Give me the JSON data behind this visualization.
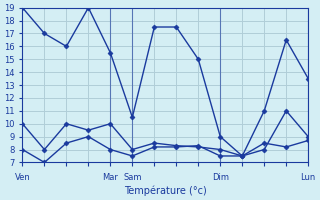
{
  "title": "",
  "xlabel": "Température (°c)",
  "ylabel": "",
  "background_color": "#d4eef4",
  "grid_color": "#b0cdd8",
  "line_color": "#1a3a9e",
  "ylim": [
    7,
    19
  ],
  "xlim": [
    0,
    13
  ],
  "yticks": [
    7,
    8,
    9,
    10,
    11,
    12,
    13,
    14,
    15,
    16,
    17,
    18,
    19
  ],
  "day_positions": [
    0,
    4,
    5,
    9,
    13
  ],
  "day_labels": [
    "Ven",
    "Mar",
    "Sam",
    "Dim",
    "Lun"
  ],
  "vlines": [
    4,
    5,
    9,
    13
  ],
  "series": [
    {
      "x": [
        0,
        1,
        2,
        3,
        4,
        5,
        6,
        7,
        8,
        9,
        10,
        11,
        12,
        13
      ],
      "y": [
        19,
        17,
        16,
        19,
        15.5,
        10.5,
        17.5,
        17.5,
        15,
        9,
        7.5,
        11,
        16.5,
        13.5
      ]
    },
    {
      "x": [
        0,
        1,
        2,
        3,
        4,
        5,
        6,
        7,
        8,
        9,
        10,
        11,
        12,
        13
      ],
      "y": [
        10,
        8,
        10,
        9.5,
        10,
        8,
        8.5,
        8.3,
        8.2,
        8,
        7.5,
        8.5,
        8.2,
        8.7
      ]
    },
    {
      "x": [
        0,
        1,
        2,
        3,
        4,
        5,
        6,
        7,
        8,
        9,
        10,
        11,
        12,
        13
      ],
      "y": [
        8,
        7,
        8.5,
        9,
        8,
        7.5,
        8.2,
        8.2,
        8.3,
        7.5,
        7.5,
        8,
        11,
        9
      ]
    }
  ]
}
